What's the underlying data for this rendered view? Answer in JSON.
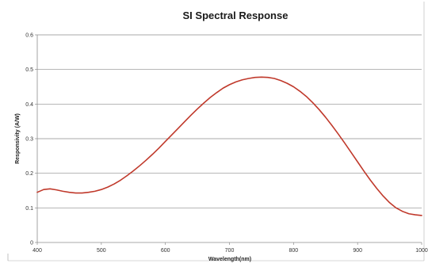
{
  "chart_data": {
    "type": "line",
    "title": "SI Spectral Response",
    "xlabel": "Wavelength(nm)",
    "ylabel": "Responsivity (A/W)",
    "xlim": [
      400,
      1000
    ],
    "ylim": [
      0,
      0.6
    ],
    "x_ticks": [
      "400",
      "500",
      "600",
      "700",
      "800",
      "900",
      "1000"
    ],
    "y_ticks": [
      "0",
      "0.1",
      "0.2",
      "0.3",
      "0.4",
      "0.5",
      "0.6"
    ],
    "grid": "horizontal",
    "legend": "none",
    "series": [
      {
        "color": "#c0392b",
        "x": [
          400,
          410,
          420,
          430,
          440,
          450,
          460,
          470,
          480,
          490,
          500,
          510,
          520,
          530,
          540,
          550,
          560,
          570,
          580,
          590,
          600,
          610,
          620,
          630,
          640,
          650,
          660,
          670,
          680,
          690,
          700,
          710,
          720,
          730,
          740,
          750,
          760,
          770,
          780,
          790,
          800,
          810,
          820,
          830,
          840,
          850,
          860,
          870,
          880,
          890,
          900,
          910,
          920,
          930,
          940,
          950,
          960,
          970,
          980,
          990,
          1000
        ],
        "y": [
          0.145,
          0.153,
          0.155,
          0.152,
          0.148,
          0.145,
          0.143,
          0.143,
          0.145,
          0.148,
          0.153,
          0.16,
          0.169,
          0.18,
          0.193,
          0.207,
          0.222,
          0.238,
          0.255,
          0.273,
          0.292,
          0.311,
          0.33,
          0.349,
          0.368,
          0.386,
          0.403,
          0.419,
          0.433,
          0.446,
          0.456,
          0.464,
          0.47,
          0.474,
          0.477,
          0.478,
          0.477,
          0.474,
          0.468,
          0.46,
          0.45,
          0.437,
          0.422,
          0.404,
          0.384,
          0.362,
          0.338,
          0.313,
          0.287,
          0.26,
          0.233,
          0.206,
          0.18,
          0.156,
          0.134,
          0.115,
          0.1,
          0.09,
          0.083,
          0.08,
          0.078
        ]
      }
    ]
  }
}
